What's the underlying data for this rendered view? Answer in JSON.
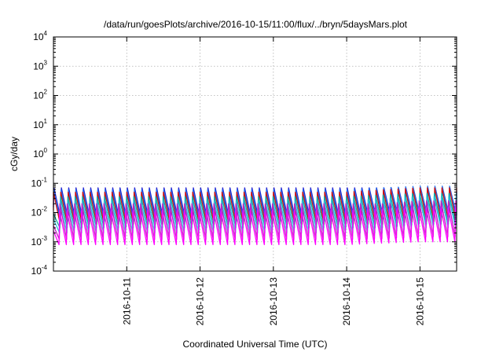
{
  "chart_data": {
    "type": "line",
    "title": "/data/run/goesPlots/archive/2016-10-15/11:00/flux/../bryn/5daysMars.plot",
    "xlabel": "Coordinated Universal Time (UTC)",
    "ylabel": "cGy/day",
    "yscale": "log",
    "xlim": [
      "2016-10-10T00:00",
      "2016-10-15T12:00"
    ],
    "ylim": [
      0.0001,
      10000
    ],
    "grid": true,
    "legend": "none",
    "x_ticks": [
      {
        "value": "2016-10-11T00:00",
        "label": "2016-10-11"
      },
      {
        "value": "2016-10-12T00:00",
        "label": "2016-10-12"
      },
      {
        "value": "2016-10-13T00:00",
        "label": "2016-10-13"
      },
      {
        "value": "2016-10-14T00:00",
        "label": "2016-10-14"
      },
      {
        "value": "2016-10-15T00:00",
        "label": "2016-10-15"
      }
    ],
    "y_ticks": [
      {
        "value": 0.0001,
        "base": "10",
        "exp": "-4"
      },
      {
        "value": 0.001,
        "base": "10",
        "exp": "-3"
      },
      {
        "value": 0.01,
        "base": "10",
        "exp": "-2"
      },
      {
        "value": 0.1,
        "base": "10",
        "exp": "-1"
      },
      {
        "value": 1,
        "base": "10",
        "exp": "0"
      },
      {
        "value": 10,
        "base": "10",
        "exp": "1"
      },
      {
        "value": 100,
        "base": "10",
        "exp": "2"
      },
      {
        "value": 1000,
        "base": "10",
        "exp": "3"
      },
      {
        "value": 10000,
        "base": "10",
        "exp": "4"
      }
    ],
    "sawtooth_period_hours": 2.4,
    "series": [
      {
        "color": "#2020d0",
        "peaks": [
          0.07,
          0.07,
          0.07,
          0.07,
          0.07,
          0.07,
          0.07,
          0.07,
          0.07,
          0.07,
          0.07,
          0.07
        ],
        "troughs": [
          0.006,
          0.006,
          0.006,
          0.006,
          0.006,
          0.006,
          0.006,
          0.006,
          0.006,
          0.007,
          0.008,
          0.008
        ]
      },
      {
        "color": "#2070f0",
        "peaks": [
          0.06,
          0.06,
          0.06,
          0.06,
          0.06,
          0.06,
          0.06,
          0.06,
          0.06,
          0.07,
          0.08,
          0.08
        ],
        "troughs": [
          0.005,
          0.005,
          0.005,
          0.005,
          0.005,
          0.005,
          0.005,
          0.005,
          0.005,
          0.006,
          0.007,
          0.007
        ]
      },
      {
        "color": "#d01010",
        "peaks": [
          0.05,
          0.05,
          0.05,
          0.05,
          0.05,
          0.05,
          0.05,
          0.05,
          0.05,
          0.06,
          0.07,
          0.07
        ],
        "troughs": [
          0.004,
          0.004,
          0.004,
          0.004,
          0.004,
          0.004,
          0.004,
          0.004,
          0.004,
          0.004,
          0.005,
          0.005
        ]
      },
      {
        "color": "#10b0a0",
        "peaks": [
          0.035,
          0.035,
          0.035,
          0.035,
          0.035,
          0.035,
          0.035,
          0.035,
          0.035,
          0.04,
          0.045,
          0.045
        ],
        "troughs": [
          0.003,
          0.003,
          0.003,
          0.003,
          0.003,
          0.003,
          0.003,
          0.003,
          0.003,
          0.003,
          0.004,
          0.004
        ]
      },
      {
        "color": "#30c0e0",
        "peaks": [
          0.025,
          0.025,
          0.025,
          0.025,
          0.025,
          0.025,
          0.025,
          0.025,
          0.025,
          0.03,
          0.035,
          0.035
        ],
        "troughs": [
          0.002,
          0.002,
          0.002,
          0.002,
          0.002,
          0.002,
          0.002,
          0.002,
          0.002,
          0.002,
          0.003,
          0.003
        ]
      },
      {
        "color": "#c020c0",
        "peaks": [
          0.02,
          0.02,
          0.02,
          0.02,
          0.02,
          0.02,
          0.02,
          0.02,
          0.02,
          0.02,
          0.025,
          0.025
        ],
        "troughs": [
          0.0012,
          0.0012,
          0.0012,
          0.0012,
          0.0012,
          0.0012,
          0.0012,
          0.0012,
          0.0012,
          0.0013,
          0.0015,
          0.0015
        ]
      },
      {
        "color": "#ff00ff",
        "peaks": [
          0.012,
          0.012,
          0.012,
          0.012,
          0.012,
          0.012,
          0.012,
          0.012,
          0.012,
          0.013,
          0.015,
          0.015
        ],
        "troughs": [
          0.0008,
          0.0008,
          0.0008,
          0.0008,
          0.0008,
          0.0008,
          0.0008,
          0.0008,
          0.0008,
          0.0009,
          0.001,
          0.001
        ]
      }
    ]
  }
}
